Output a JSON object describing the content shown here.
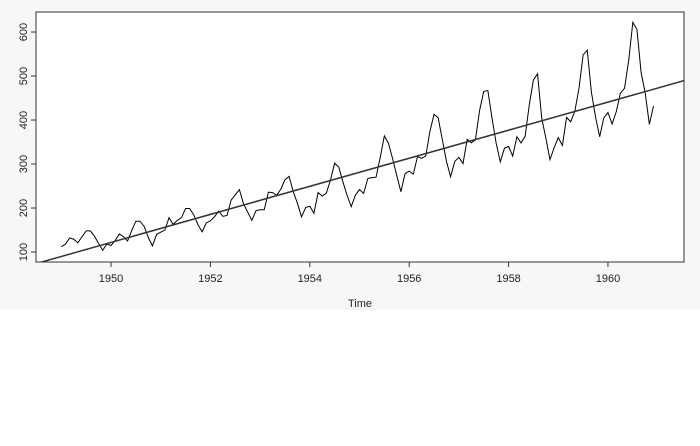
{
  "chart_data": {
    "type": "line",
    "xlabel": "Time",
    "x": [
      1949,
      1949.083,
      1949.167,
      1949.25,
      1949.333,
      1949.417,
      1949.5,
      1949.583,
      1949.667,
      1949.75,
      1949.833,
      1949.917,
      1950,
      1950.083,
      1950.167,
      1950.25,
      1950.333,
      1950.417,
      1950.5,
      1950.583,
      1950.667,
      1950.75,
      1950.833,
      1950.917,
      1951,
      1951.083,
      1951.167,
      1951.25,
      1951.333,
      1951.417,
      1951.5,
      1951.583,
      1951.667,
      1951.75,
      1951.833,
      1951.917,
      1952,
      1952.083,
      1952.167,
      1952.25,
      1952.333,
      1952.417,
      1952.5,
      1952.583,
      1952.667,
      1952.75,
      1952.833,
      1952.917,
      1953,
      1953.083,
      1953.167,
      1953.25,
      1953.333,
      1953.417,
      1953.5,
      1953.583,
      1953.667,
      1953.75,
      1953.833,
      1953.917,
      1954,
      1954.083,
      1954.167,
      1954.25,
      1954.333,
      1954.417,
      1954.5,
      1954.583,
      1954.667,
      1954.75,
      1954.833,
      1954.917,
      1955,
      1955.083,
      1955.167,
      1955.25,
      1955.333,
      1955.417,
      1955.5,
      1955.583,
      1955.667,
      1955.75,
      1955.833,
      1955.917,
      1956,
      1956.083,
      1956.167,
      1956.25,
      1956.333,
      1956.417,
      1956.5,
      1956.583,
      1956.667,
      1956.75,
      1956.833,
      1956.917,
      1957,
      1957.083,
      1957.167,
      1957.25,
      1957.333,
      1957.417,
      1957.5,
      1957.583,
      1957.667,
      1957.75,
      1957.833,
      1957.917,
      1958,
      1958.083,
      1958.167,
      1958.25,
      1958.333,
      1958.417,
      1958.5,
      1958.583,
      1958.667,
      1958.75,
      1958.833,
      1958.917,
      1959,
      1959.083,
      1959.167,
      1959.25,
      1959.333,
      1959.417,
      1959.5,
      1959.583,
      1959.667,
      1959.75,
      1959.833,
      1959.917,
      1960,
      1960.083,
      1960.167,
      1960.25,
      1960.333,
      1960.417,
      1960.5,
      1960.583,
      1960.667,
      1960.75,
      1960.833,
      1960.917
    ],
    "series": [
      {
        "color": "#000000",
        "values": [
          112,
          118,
          132,
          129,
          121,
          135,
          148,
          148,
          136,
          119,
          104,
          118,
          115,
          126,
          141,
          135,
          125,
          149,
          170,
          170,
          158,
          133,
          114,
          140,
          145,
          150,
          178,
          163,
          172,
          178,
          199,
          199,
          184,
          162,
          146,
          166,
          171,
          180,
          193,
          181,
          183,
          218,
          230,
          242,
          209,
          191,
          172,
          194,
          196,
          196,
          236,
          235,
          229,
          243,
          264,
          272,
          237,
          211,
          180,
          201,
          204,
          188,
          235,
          227,
          234,
          264,
          302,
          293,
          259,
          229,
          203,
          229,
          242,
          233,
          267,
          269,
          270,
          315,
          364,
          347,
          312,
          274,
          237,
          278,
          284,
          277,
          317,
          313,
          318,
          374,
          413,
          405,
          355,
          306,
          271,
          306,
          315,
          301,
          356,
          348,
          355,
          422,
          465,
          467,
          404,
          347,
          305,
          336,
          340,
          318,
          362,
          348,
          363,
          435,
          491,
          505,
          404,
          359,
          310,
          337,
          360,
          342,
          406,
          396,
          420,
          472,
          548,
          559,
          463,
          407,
          362,
          405,
          417,
          391,
          419,
          461,
          472,
          535,
          622,
          606,
          508,
          461,
          390,
          432
        ]
      }
    ],
    "trend": {
      "color": "#333333",
      "x": [
        1948.49,
        1961.53
      ],
      "values": [
        73.6,
        489.5
      ]
    },
    "xlim": [
      1948.49,
      1961.53
    ],
    "ylim": [
      77.3,
      645.5
    ],
    "xticks": [
      1950,
      1952,
      1954,
      1956,
      1958,
      1960
    ],
    "yticks": [
      100,
      200,
      300,
      400,
      500,
      600
    ]
  }
}
